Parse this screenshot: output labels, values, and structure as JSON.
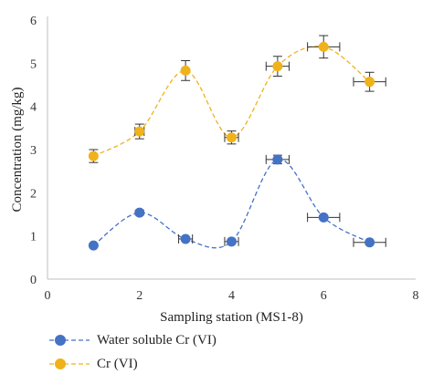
{
  "chart_data": {
    "type": "scatter",
    "xlabel": "Sampling station (MS1-8)",
    "ylabel": "Concentration (mg/kg)",
    "xlim": [
      0,
      8
    ],
    "ylim": [
      0,
      6
    ],
    "xticks": [
      0,
      2,
      4,
      6,
      8
    ],
    "yticks": [
      0,
      1,
      2,
      3,
      4,
      5,
      6
    ],
    "grid": false,
    "legend_position": "bottom-left",
    "series": [
      {
        "name": "Water soluble Cr (VI)",
        "color": "#4472c4",
        "line_style": "dashed-smooth",
        "points": [
          {
            "x": 1,
            "y": 0.78
          },
          {
            "x": 2,
            "y": 1.54,
            "yerr": 0.06
          },
          {
            "x": 3,
            "y": 0.93,
            "xerr": 0.15
          },
          {
            "x": 4,
            "y": 0.87,
            "xerr": 0.15
          },
          {
            "x": 5,
            "y": 2.77,
            "xerr": 0.25,
            "yerr": 0.1
          },
          {
            "x": 6,
            "y": 1.43,
            "xerr": 0.35
          },
          {
            "x": 7,
            "y": 0.85,
            "xerr": 0.35
          }
        ]
      },
      {
        "name": "Cr (VI)",
        "color": "#f0b21a",
        "line_style": "dashed-smooth",
        "points": [
          {
            "x": 1,
            "y": 2.85,
            "yerr": 0.15
          },
          {
            "x": 2,
            "y": 3.42,
            "xerr": 0.1,
            "yerr": 0.17
          },
          {
            "x": 3,
            "y": 4.83,
            "yerr": 0.23
          },
          {
            "x": 4,
            "y": 3.28,
            "xerr": 0.15,
            "yerr": 0.15
          },
          {
            "x": 5,
            "y": 4.93,
            "xerr": 0.25,
            "yerr": 0.23
          },
          {
            "x": 6,
            "y": 5.38,
            "xerr": 0.35,
            "yerr": 0.26
          },
          {
            "x": 7,
            "y": 4.57,
            "xerr": 0.35,
            "yerr": 0.22
          }
        ]
      }
    ]
  }
}
